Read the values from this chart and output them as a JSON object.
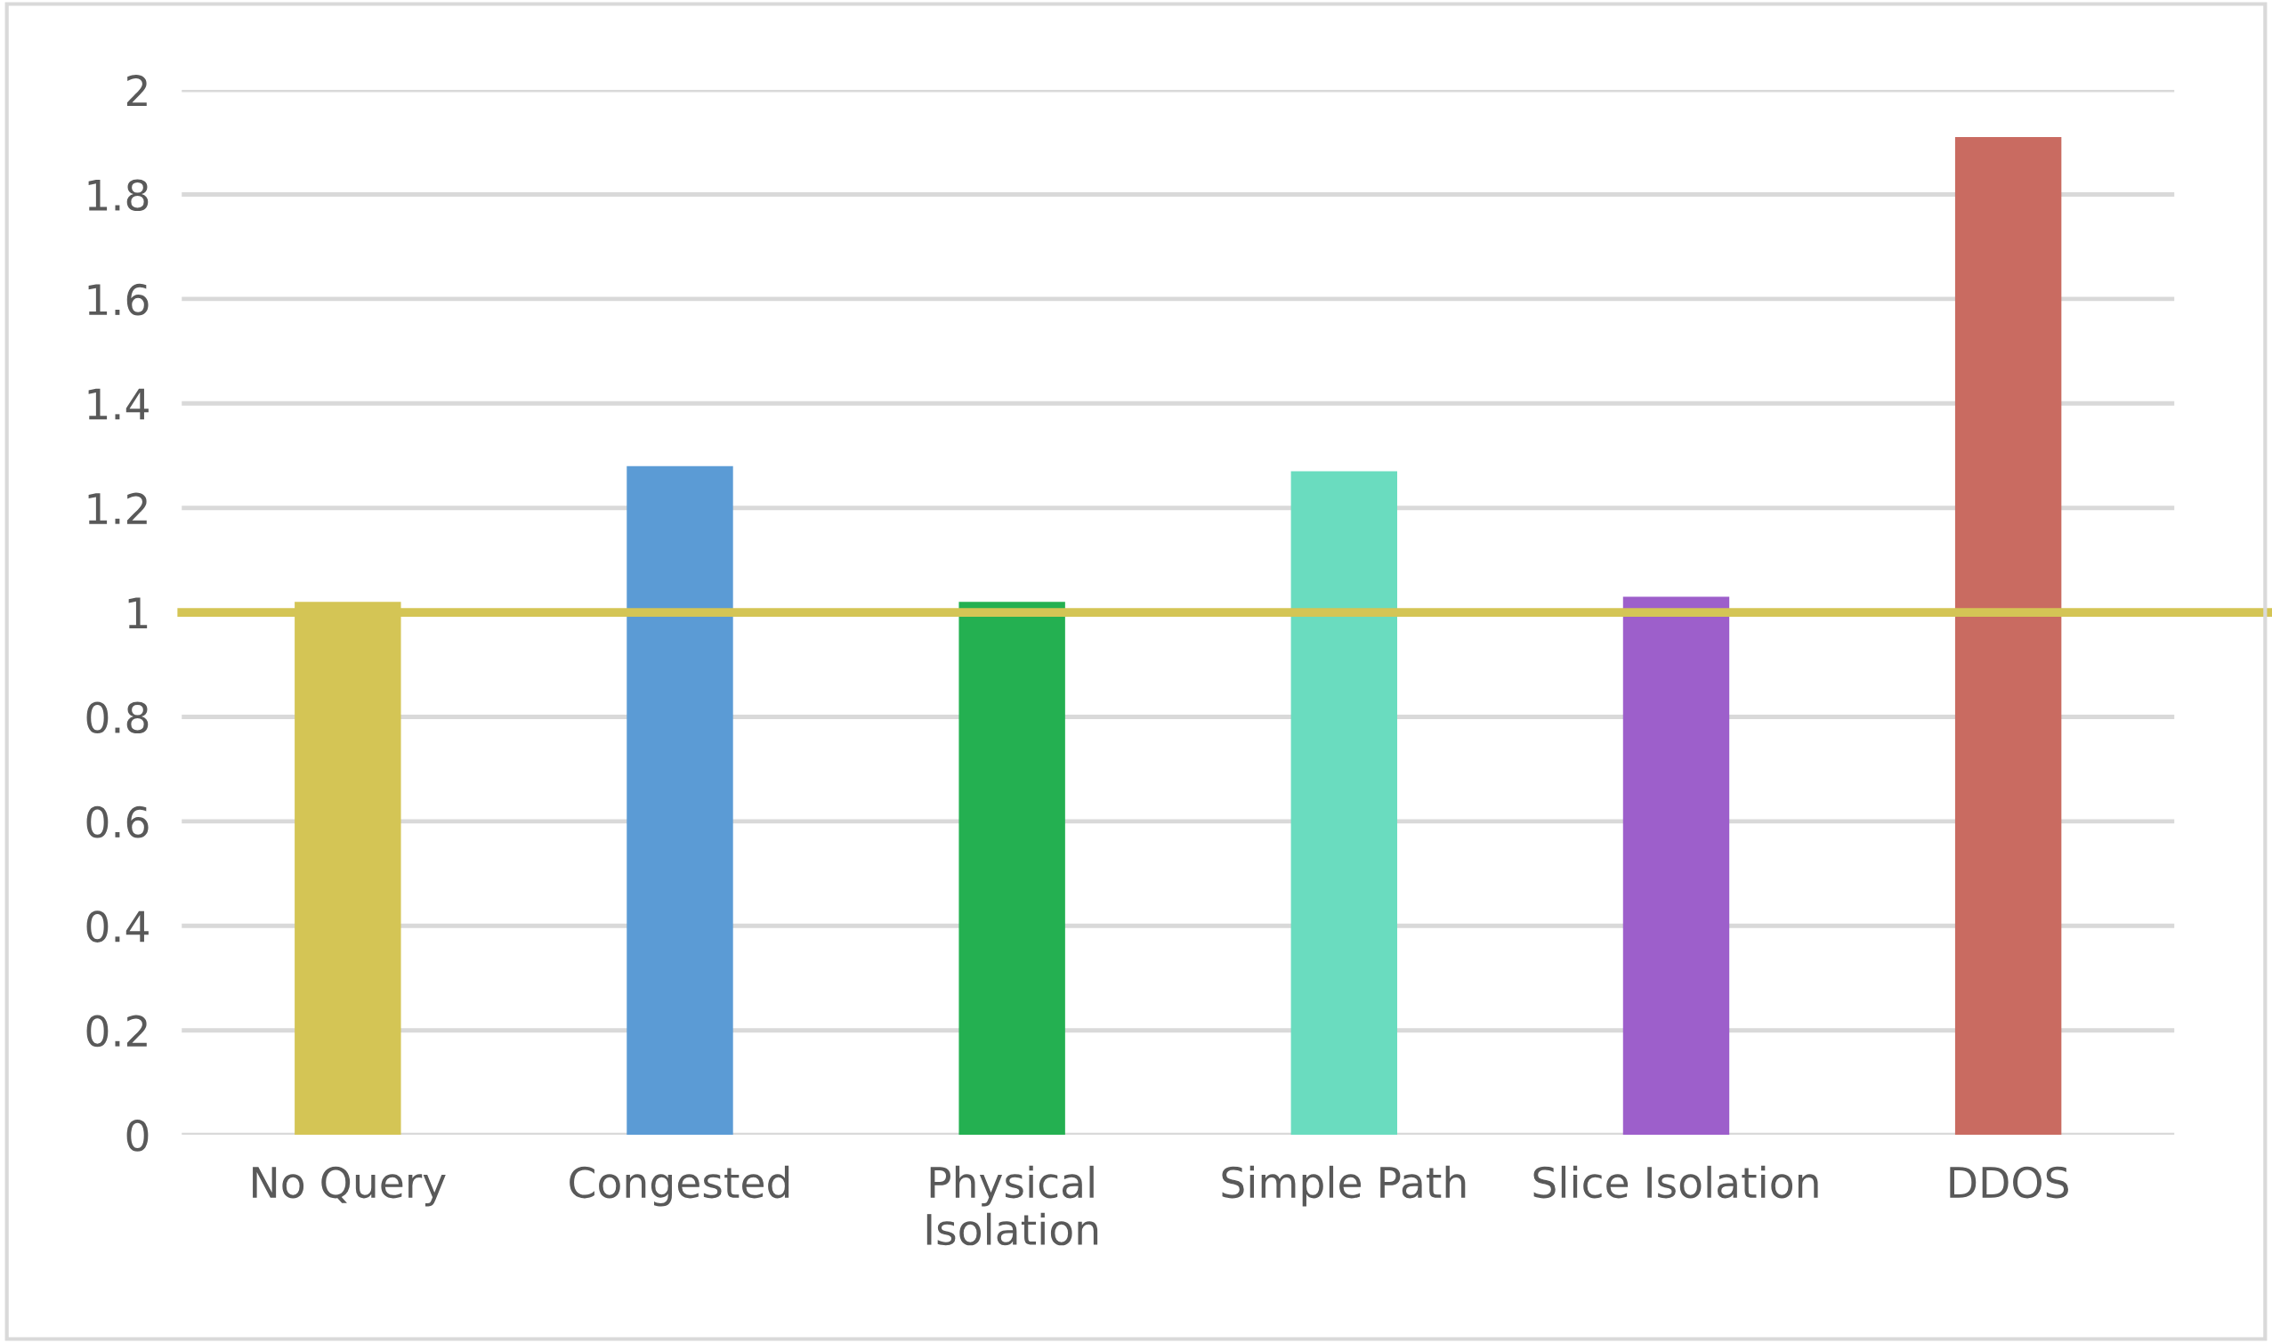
{
  "chart_data": {
    "type": "bar",
    "categories": [
      "No Query",
      "Congested",
      "Physical\nIsolation",
      "Simple Path",
      "Slice Isolation",
      "DDOS"
    ],
    "values": [
      1.02,
      1.28,
      1.02,
      1.27,
      1.03,
      1.91
    ],
    "colors": [
      "#d4c555",
      "#5b9bd5",
      "#24b051",
      "#6adcbf",
      "#9d5fcb",
      "#c96b61"
    ],
    "ylim": [
      0,
      2
    ],
    "yticks": [
      0,
      0.2,
      0.4,
      0.6,
      0.8,
      1,
      1.2,
      1.4,
      1.6,
      1.8,
      2
    ],
    "grid": "y",
    "ref_lines": [
      {
        "axis": "y",
        "value": 1,
        "color": "#d4c555",
        "line_style": "solid"
      }
    ]
  }
}
